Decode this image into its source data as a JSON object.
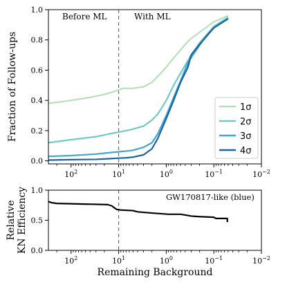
{
  "chart_data": [
    {
      "type": "line",
      "ylabel": "Fraction of Follow-ups",
      "xlabel": "",
      "xscale": "log",
      "x_reversed": true,
      "xlim": [
        300,
        0.01
      ],
      "ylim": [
        -0.02,
        1.0
      ],
      "xticks": [
        100,
        10,
        1,
        0.1,
        0.01
      ],
      "xtick_labels": [
        {
          "base": "10",
          "exp": "2"
        },
        {
          "base": "10",
          "exp": "1"
        },
        {
          "base": "10",
          "exp": "0"
        },
        {
          "base": "10",
          "exp": "−1"
        },
        {
          "base": "10",
          "exp": "−2"
        }
      ],
      "yticks": [
        0.0,
        0.2,
        0.4,
        0.6,
        0.8,
        1.0
      ],
      "ytick_labels": [
        "0.0",
        "0.2",
        "0.4",
        "0.6",
        "0.8",
        "1.0"
      ],
      "threshold_x": 10,
      "region_labels": [
        "Before ML",
        "With ML"
      ],
      "legend_position": "lower-right",
      "series": [
        {
          "name": "1σ",
          "color": "#b8e0b8",
          "points": [
            [
              300,
              0.38
            ],
            [
              100,
              0.4
            ],
            [
              40,
              0.42
            ],
            [
              20,
              0.44
            ],
            [
              12,
              0.46
            ],
            [
              10,
              0.47
            ],
            [
              8,
              0.48
            ],
            [
              5,
              0.48
            ],
            [
              3,
              0.49
            ],
            [
              2,
              0.52
            ],
            [
              1.5,
              0.56
            ],
            [
              1,
              0.62
            ],
            [
              0.7,
              0.68
            ],
            [
              0.4,
              0.77
            ],
            [
              0.3,
              0.81
            ],
            [
              0.2,
              0.85
            ],
            [
              0.1,
              0.92
            ],
            [
              0.05,
              0.96
            ]
          ]
        },
        {
          "name": "2σ",
          "color": "#6fcac2",
          "points": [
            [
              300,
              0.12
            ],
            [
              100,
              0.14
            ],
            [
              30,
              0.16
            ],
            [
              15,
              0.18
            ],
            [
              10,
              0.19
            ],
            [
              7,
              0.2
            ],
            [
              5,
              0.21
            ],
            [
              3,
              0.23
            ],
            [
              2,
              0.27
            ],
            [
              1.5,
              0.31
            ],
            [
              1,
              0.4
            ],
            [
              0.7,
              0.5
            ],
            [
              0.5,
              0.58
            ],
            [
              0.3,
              0.7
            ],
            [
              0.2,
              0.78
            ],
            [
              0.1,
              0.89
            ],
            [
              0.05,
              0.95
            ]
          ]
        },
        {
          "name": "3σ",
          "color": "#41a6cc",
          "points": [
            [
              300,
              0.03
            ],
            [
              100,
              0.035
            ],
            [
              30,
              0.045
            ],
            [
              15,
              0.055
            ],
            [
              10,
              0.06
            ],
            [
              7,
              0.065
            ],
            [
              5,
              0.07
            ],
            [
              3,
              0.09
            ],
            [
              2,
              0.12
            ],
            [
              1.5,
              0.18
            ],
            [
              1,
              0.3
            ],
            [
              0.7,
              0.42
            ],
            [
              0.5,
              0.53
            ],
            [
              0.35,
              0.65
            ],
            [
              0.25,
              0.72
            ],
            [
              0.15,
              0.82
            ],
            [
              0.1,
              0.88
            ],
            [
              0.05,
              0.94
            ]
          ]
        },
        {
          "name": "4σ",
          "color": "#1b639e",
          "points": [
            [
              300,
              0.005
            ],
            [
              100,
              0.008
            ],
            [
              30,
              0.01
            ],
            [
              15,
              0.015
            ],
            [
              10,
              0.018
            ],
            [
              7,
              0.02
            ],
            [
              5,
              0.025
            ],
            [
              3,
              0.04
            ],
            [
              2,
              0.08
            ],
            [
              1.5,
              0.15
            ],
            [
              1,
              0.28
            ],
            [
              0.7,
              0.4
            ],
            [
              0.5,
              0.52
            ],
            [
              0.35,
              0.62
            ],
            [
              0.3,
              0.7
            ],
            [
              0.2,
              0.77
            ],
            [
              0.1,
              0.88
            ],
            [
              0.05,
              0.94
            ]
          ]
        }
      ]
    },
    {
      "type": "line",
      "ylabel_lines": [
        "Relative",
        "KN Efficiency"
      ],
      "xlabel": "Remaining Background",
      "xscale": "log",
      "x_reversed": true,
      "xlim": [
        300,
        0.01
      ],
      "ylim": [
        0.0,
        1.0
      ],
      "xticks": [
        100,
        10,
        1,
        0.1,
        0.01
      ],
      "xtick_labels": [
        {
          "base": "10",
          "exp": "2"
        },
        {
          "base": "10",
          "exp": "1"
        },
        {
          "base": "10",
          "exp": "0"
        },
        {
          "base": "10",
          "exp": "−1"
        },
        {
          "base": "10",
          "exp": "−2"
        }
      ],
      "yticks": [
        0.0,
        0.5,
        1.0
      ],
      "ytick_labels": [
        "0.0",
        "0.5",
        "1.0"
      ],
      "threshold_x": 10,
      "annotation": "GW170817-like (blue)",
      "series": [
        {
          "color": "#000000",
          "points": [
            [
              300,
              0.81
            ],
            [
              250,
              0.79
            ],
            [
              200,
              0.78
            ],
            [
              17,
              0.76
            ],
            [
              14,
              0.74
            ],
            [
              12,
              0.7
            ],
            [
              11,
              0.68
            ],
            [
              9,
              0.67
            ],
            [
              5,
              0.66
            ],
            [
              4,
              0.64
            ],
            [
              2,
              0.62
            ],
            [
              0.9,
              0.6
            ],
            [
              0.5,
              0.6
            ],
            [
              0.35,
              0.58
            ],
            [
              0.3,
              0.57
            ],
            [
              0.2,
              0.56
            ],
            [
              0.1,
              0.55
            ],
            [
              0.09,
              0.53
            ],
            [
              0.06,
              0.53
            ],
            [
              0.052,
              0.53
            ],
            [
              0.052,
              0.47
            ]
          ]
        }
      ]
    }
  ]
}
